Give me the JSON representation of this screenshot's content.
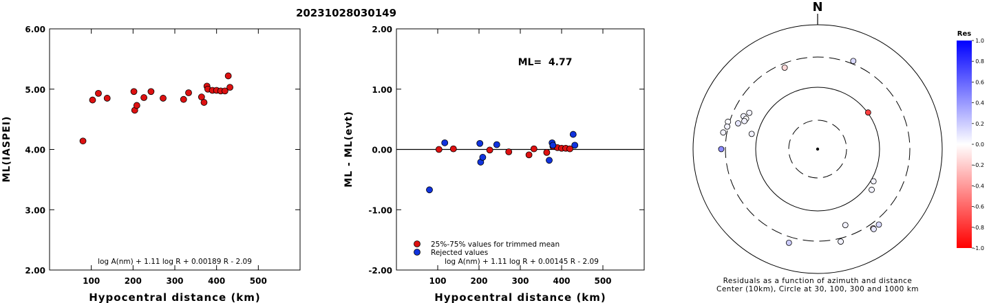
{
  "header": {
    "event_id": "20231028030149"
  },
  "chart_data": [
    {
      "id": "ml_vs_distance",
      "type": "scatter",
      "xlabel": "Hypocentral distance (km)",
      "ylabel": "ML(IASPEI)",
      "xlim": [
        0,
        600
      ],
      "ylim": [
        2.0,
        6.0
      ],
      "x_ticks": [
        100,
        200,
        300,
        400,
        500
      ],
      "y_ticks": [
        2.0,
        3.0,
        4.0,
        5.0,
        6.0
      ],
      "y_tick_labels": [
        "2.00",
        "3.00",
        "4.00",
        "5.00",
        "6.00"
      ],
      "annotation": "log A(nm) + 1.11 log R + 0.00189 R - 2.09",
      "points_color": "#dd1111",
      "points": [
        {
          "x": 80,
          "y": 4.14
        },
        {
          "x": 103,
          "y": 4.82
        },
        {
          "x": 117,
          "y": 4.93
        },
        {
          "x": 138,
          "y": 4.85
        },
        {
          "x": 202,
          "y": 4.96
        },
        {
          "x": 204,
          "y": 4.65
        },
        {
          "x": 209,
          "y": 4.73
        },
        {
          "x": 226,
          "y": 4.86
        },
        {
          "x": 243,
          "y": 4.96
        },
        {
          "x": 272,
          "y": 4.85
        },
        {
          "x": 321,
          "y": 4.83
        },
        {
          "x": 333,
          "y": 4.94
        },
        {
          "x": 364,
          "y": 4.87
        },
        {
          "x": 370,
          "y": 4.78
        },
        {
          "x": 377,
          "y": 5.05
        },
        {
          "x": 379,
          "y": 5.0
        },
        {
          "x": 390,
          "y": 4.98
        },
        {
          "x": 400,
          "y": 4.98
        },
        {
          "x": 410,
          "y": 4.97
        },
        {
          "x": 420,
          "y": 4.97
        },
        {
          "x": 428,
          "y": 5.22
        },
        {
          "x": 432,
          "y": 5.03
        }
      ]
    },
    {
      "id": "residual_vs_distance",
      "type": "scatter",
      "xlabel": "Hypocentral distance (km)",
      "ylabel": "ML - ML(evt)",
      "xlim": [
        0,
        600
      ],
      "ylim": [
        -2.0,
        2.0
      ],
      "x_ticks": [
        100,
        200,
        300,
        400,
        500
      ],
      "y_ticks": [
        -2.0,
        -1.0,
        0.0,
        1.0,
        2.0
      ],
      "y_tick_labels": [
        "-2.00",
        "-1.00",
        "0.00",
        "1.00",
        "2.00"
      ],
      "ml_label": "ML=  4.77",
      "annotation": "log A(nm) + 1.11 log R + 0.00145 R - 2.09",
      "legend": {
        "placement": "bottom-left",
        "entries": [
          {
            "label": "25%-75% values for trimmed mean",
            "color": "#dd1111"
          },
          {
            "label": "Rejected values",
            "color": "#1133dd"
          }
        ]
      },
      "series": [
        {
          "color": "#dd1111",
          "points": [
            {
              "x": 103,
              "y": 0.0
            },
            {
              "x": 138,
              "y": 0.01
            },
            {
              "x": 226,
              "y": -0.01
            },
            {
              "x": 272,
              "y": -0.04
            },
            {
              "x": 321,
              "y": -0.09
            },
            {
              "x": 333,
              "y": 0.01
            },
            {
              "x": 364,
              "y": -0.05
            },
            {
              "x": 379,
              "y": 0.05
            },
            {
              "x": 390,
              "y": 0.03
            },
            {
              "x": 400,
              "y": 0.02
            },
            {
              "x": 410,
              "y": 0.02
            },
            {
              "x": 420,
              "y": 0.01
            }
          ]
        },
        {
          "color": "#1133dd",
          "points": [
            {
              "x": 80,
              "y": -0.67
            },
            {
              "x": 117,
              "y": 0.11
            },
            {
              "x": 202,
              "y": 0.1
            },
            {
              "x": 204,
              "y": -0.21
            },
            {
              "x": 209,
              "y": -0.13
            },
            {
              "x": 243,
              "y": 0.08
            },
            {
              "x": 370,
              "y": -0.18
            },
            {
              "x": 377,
              "y": 0.11
            },
            {
              "x": 379,
              "y": 0.07
            },
            {
              "x": 428,
              "y": 0.25
            },
            {
              "x": 432,
              "y": 0.07
            }
          ]
        }
      ]
    },
    {
      "id": "azimuth_residuals",
      "type": "scatter",
      "north_label": "N",
      "caption_lines": [
        "Residuals as a function of azimuth and distance",
        "Center (10km), Circle at 30, 100, 300 and 1000 km"
      ],
      "colorbar": {
        "title": "Res",
        "ticks": [
          1.0,
          0.8,
          0.6,
          0.4,
          0.2,
          0.0,
          -0.2,
          -0.4,
          -0.6,
          -0.8,
          -1.0
        ],
        "tick_labels": [
          "1.0",
          "0.8",
          "0.6",
          "0.4",
          "0.2",
          "0.0",
          "-0.2",
          "-0.4",
          "-0.6",
          "-0.8",
          "-1.0"
        ],
        "max_color": "#0000ff",
        "mid_color": "#ffffff",
        "min_color": "#ff0000"
      },
      "stations": [
        {
          "azimuth": 338,
          "distance": 272,
          "res": -0.15
        },
        {
          "azimuth": 22,
          "distance": 364,
          "res": 0.15
        },
        {
          "azimuth": 54,
          "distance": 103,
          "res": -0.75
        },
        {
          "azimuth": 298,
          "distance": 202,
          "res": 0.05
        },
        {
          "azimuth": 294,
          "distance": 226,
          "res": 0.05
        },
        {
          "azimuth": 293,
          "distance": 204,
          "res": 0.0
        },
        {
          "azimuth": 291,
          "distance": 209,
          "res": 0.05
        },
        {
          "azimuth": 288,
          "distance": 243,
          "res": 0.1
        },
        {
          "azimuth": 287,
          "distance": 333,
          "res": 0.02
        },
        {
          "azimuth": 284,
          "distance": 321,
          "res": 0.05
        },
        {
          "azimuth": 280,
          "distance": 379,
          "res": 0.05
        },
        {
          "azimuth": 283,
          "distance": 138,
          "res": 0.05
        },
        {
          "azimuth": 270,
          "distance": 390,
          "res": 0.45
        },
        {
          "azimuth": 120,
          "distance": 117,
          "res": 0.05
        },
        {
          "azimuth": 127,
          "distance": 138,
          "res": 0.05
        },
        {
          "azimuth": 145,
          "distance": 400,
          "res": -0.2
        },
        {
          "azimuth": 141,
          "distance": 410,
          "res": 0.15
        },
        {
          "azimuth": 145,
          "distance": 420,
          "res": 0.1
        },
        {
          "azimuth": 160,
          "distance": 226,
          "res": 0.05
        },
        {
          "azimuth": 197,
          "distance": 428,
          "res": 0.2
        },
        {
          "azimuth": 166,
          "distance": 370,
          "res": 0.05
        }
      ]
    }
  ]
}
